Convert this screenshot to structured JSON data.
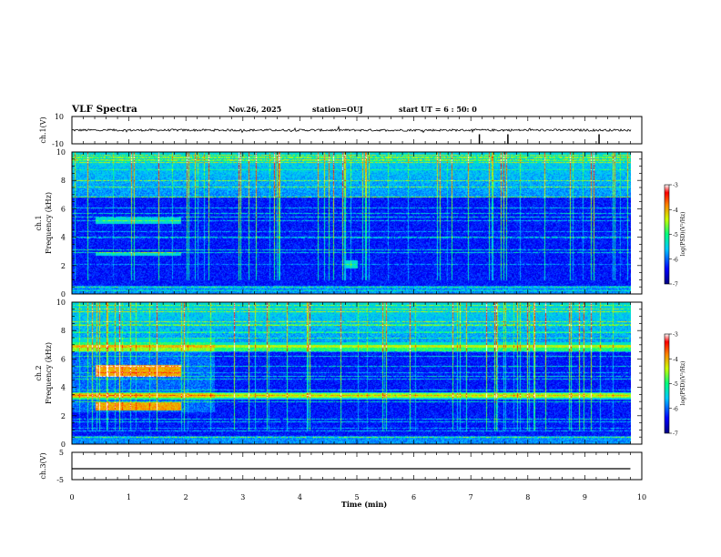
{
  "header": {
    "title": "VLF Spectra",
    "date": "Nov.26, 2025",
    "station": "station=OUJ",
    "start_ut": "start UT =  6 : 50: 0"
  },
  "colorbar_ticks": [
    "-3",
    "-4",
    "-5",
    "-6",
    "-7"
  ],
  "colorbar_label": "log(PSD)(V²/Hz)",
  "chart_data": [
    {
      "type": "line",
      "name": "ch1-waveform",
      "ylabel": "ch.1(V)",
      "ylim": [
        -10,
        10
      ],
      "y_ticks": [
        "10",
        "-10"
      ],
      "baseline": 0,
      "spike_times_min": [
        7.15,
        7.65,
        9.25
      ]
    },
    {
      "type": "heatmap",
      "name": "ch1-spectrogram",
      "ylabel_line1": "ch.1",
      "ylabel_line2": "Frequency (kHz)",
      "ylim": [
        0,
        10
      ],
      "y_ticks": [
        "0",
        "2",
        "4",
        "6",
        "8",
        "10"
      ],
      "color_range": [
        -7,
        -3
      ],
      "features": [
        {
          "label": "hiss band",
          "t_min": [
            0.4,
            1.9
          ],
          "f_khz": [
            5.0,
            5.4
          ]
        },
        {
          "label": "hiss band",
          "t_min": [
            0.4,
            1.9
          ],
          "f_khz": [
            2.7,
            3.0
          ]
        },
        {
          "label": "noise patch",
          "t_min": [
            4.8,
            5.0
          ],
          "f_khz": [
            1.8,
            2.4
          ]
        }
      ]
    },
    {
      "type": "heatmap",
      "name": "ch2-spectrogram",
      "ylabel_line1": "ch.2",
      "ylabel_line2": "Frequency (kHz)",
      "ylim": [
        0,
        10
      ],
      "y_ticks": [
        "0",
        "2",
        "4",
        "6",
        "8",
        "10"
      ],
      "color_range": [
        -7,
        -3
      ],
      "features": [
        {
          "label": "strong band",
          "t_min": [
            0.4,
            1.9
          ],
          "f_khz": [
            4.8,
            5.6
          ]
        },
        {
          "label": "strong band",
          "t_min": [
            0.4,
            1.9
          ],
          "f_khz": [
            2.4,
            3.0
          ]
        },
        {
          "label": "band",
          "t_min": [
            0.0,
            9.8
          ],
          "f_khz": [
            3.3,
            3.6
          ]
        },
        {
          "label": "band",
          "t_min": [
            0.0,
            9.8
          ],
          "f_khz": [
            6.6,
            7.0
          ]
        }
      ]
    },
    {
      "type": "line",
      "name": "ch3-waveform",
      "ylabel": "ch.3(V)",
      "ylim": [
        -5,
        5
      ],
      "y_ticks": [
        "5",
        "-5"
      ],
      "constant_value": -1
    }
  ],
  "x_axis": {
    "xlabel": "Time (min)",
    "xlim": [
      0,
      10
    ],
    "ticks": [
      "0",
      "1",
      "2",
      "3",
      "4",
      "5",
      "6",
      "7",
      "8",
      "9",
      "10"
    ]
  }
}
